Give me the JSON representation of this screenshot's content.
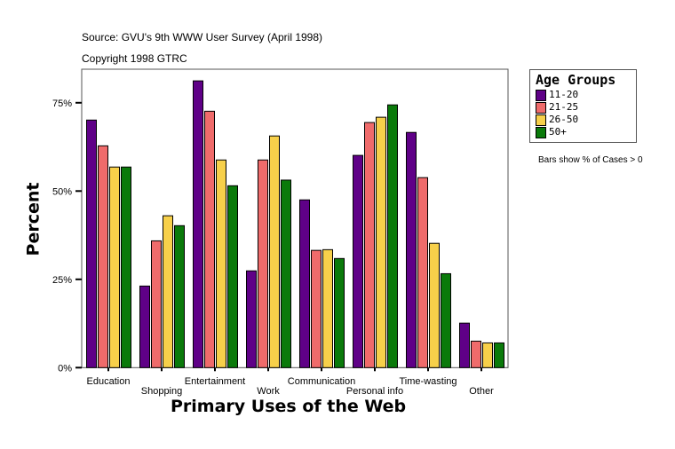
{
  "chart_data": {
    "type": "bar",
    "source": "Source: GVU's 9th WWW User Survey (April 1998)",
    "copyright": "Copyright 1998 GTRC",
    "xlabel": "Primary Uses of the Web",
    "ylabel": "Percent",
    "note": "Bars show % of Cases > 0",
    "ylim": [
      0,
      84
    ],
    "yticks": [
      0,
      25,
      50,
      75
    ],
    "ytick_labels": [
      "0%",
      "25%",
      "50%",
      "75%"
    ],
    "grid": false,
    "legend_title": "Age Groups",
    "legend_placement": "right",
    "categories": [
      "Education",
      "Shopping",
      "Entertainment",
      "Work",
      "Communication",
      "Personal info",
      "Time-wasting",
      "Other"
    ],
    "series": [
      {
        "name": "11-20",
        "color": "#5f0087",
        "values": [
          70.1,
          23.1,
          81.2,
          27.4,
          47.5,
          60.1,
          66.6,
          12.6
        ]
      },
      {
        "name": "21-25",
        "color": "#ef6b6b",
        "values": [
          62.8,
          35.9,
          72.6,
          58.8,
          33.2,
          69.4,
          53.8,
          7.5
        ]
      },
      {
        "name": "26-50",
        "color": "#f7d04a",
        "values": [
          56.8,
          43.0,
          58.8,
          65.6,
          33.4,
          70.9,
          35.2,
          7.0
        ]
      },
      {
        "name": "50+",
        "color": "#0a7a0a",
        "values": [
          56.8,
          40.2,
          51.5,
          53.1,
          30.9,
          74.4,
          26.6,
          7.0
        ]
      }
    ]
  }
}
